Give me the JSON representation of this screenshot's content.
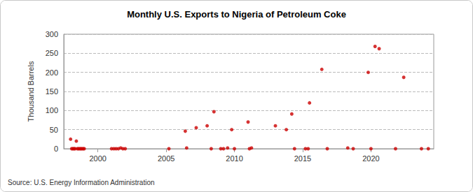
{
  "chart_data": {
    "type": "scatter",
    "title": "Monthly U.S. Exports to Nigeria of Petroleum Coke",
    "y_label": "Thousand Barrels",
    "source": "Source: U.S. Energy Information Administration",
    "color": "#cc0000",
    "marker": "circle",
    "grid": true,
    "xlim": [
      1997.5,
      2024.6
    ],
    "xticks": [
      2000,
      2005,
      2010,
      2015,
      2020
    ],
    "ylim": [
      0,
      300
    ],
    "yticks": [
      0,
      50,
      100,
      150,
      200,
      250,
      300
    ],
    "x": [
      1998.0,
      1998.08,
      1998.17,
      1998.25,
      1998.33,
      1998.42,
      1998.5,
      1998.58,
      1998.67,
      1998.75,
      1998.83,
      1998.92,
      1999.0,
      2001.0,
      2001.17,
      2001.33,
      2001.5,
      2001.67,
      2001.83,
      2002.0,
      2005.2,
      2006.4,
      2006.5,
      2007.2,
      2008.0,
      2008.3,
      2008.5,
      2009.0,
      2009.2,
      2009.5,
      2009.8,
      2010.0,
      2011.0,
      2011.1,
      2011.25,
      2013.0,
      2013.8,
      2014.2,
      2014.4,
      2015.2,
      2015.4,
      2015.5,
      2016.4,
      2016.8,
      2018.3,
      2018.7,
      2019.8,
      2020.0,
      2020.3,
      2020.6,
      2021.8,
      2022.4,
      2023.7,
      2024.2
    ],
    "values": [
      25,
      0,
      0,
      0,
      0,
      20,
      0,
      0,
      0,
      0,
      0,
      0,
      0,
      0,
      0,
      0,
      0,
      2,
      0,
      0,
      0,
      46,
      2,
      55,
      60,
      0,
      97,
      0,
      0,
      2,
      50,
      0,
      70,
      0,
      2,
      60,
      50,
      91,
      0,
      0,
      0,
      120,
      208,
      0,
      2,
      0,
      200,
      0,
      268,
      262,
      0,
      187,
      0,
      0
    ]
  }
}
